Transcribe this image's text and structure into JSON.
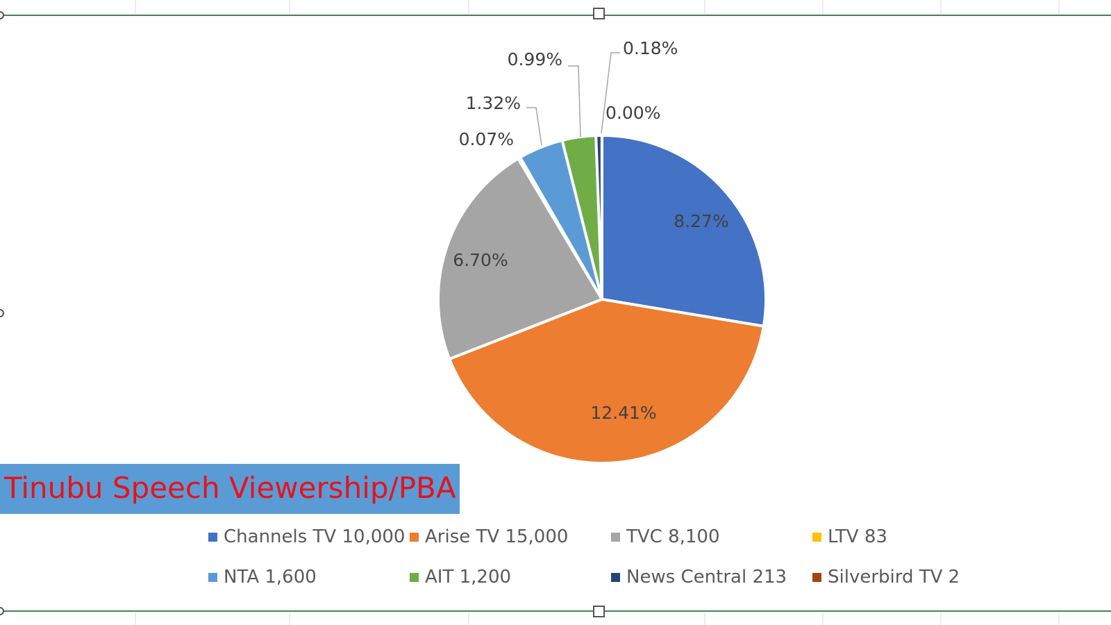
{
  "chart_data": {
    "type": "pie",
    "title": "Tinubu Speech Viewership/PBA",
    "slices": [
      {
        "name": "Channels TV",
        "value": 10000,
        "label": "8.27%",
        "color": "#4472c4",
        "legend": "Channels TV 10,000"
      },
      {
        "name": "Arise TV",
        "value": 15000,
        "label": "12.41%",
        "color": "#ed7d31",
        "legend": "Arise TV 15,000"
      },
      {
        "name": "TVC",
        "value": 8100,
        "label": "6.70%",
        "color": "#a5a5a5",
        "legend": "TVC 8,100"
      },
      {
        "name": "LTV",
        "value": 83,
        "label": "0.07%",
        "color": "#ffc000",
        "legend": "LTV 83"
      },
      {
        "name": "NTA",
        "value": 1600,
        "label": "1.32%",
        "color": "#5b9bd5",
        "legend": "NTA 1,600"
      },
      {
        "name": "AIT",
        "value": 1200,
        "label": "0.99%",
        "color": "#70ad47",
        "legend": "AIT 1,200"
      },
      {
        "name": "News Central",
        "value": 213,
        "label": "0.18%",
        "color": "#264478",
        "legend": "News Central 213"
      },
      {
        "name": "Silverbird TV",
        "value": 2,
        "label": "0.00%",
        "color": "#9e480e",
        "legend": "Silverbird TV 2"
      }
    ],
    "legend_position": "bottom"
  },
  "colors": {
    "title_text": "#e8121a",
    "title_banner": "#5b9bd5",
    "frame_line": "#2e7d32"
  }
}
